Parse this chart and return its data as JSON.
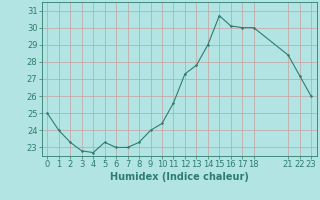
{
  "x": [
    0,
    1,
    2,
    3,
    4,
    5,
    6,
    7,
    8,
    9,
    10,
    11,
    12,
    13,
    14,
    15,
    16,
    17,
    18,
    21,
    22,
    23
  ],
  "y": [
    25.0,
    24.0,
    23.3,
    22.8,
    22.7,
    23.3,
    23.0,
    23.0,
    23.3,
    24.0,
    24.4,
    25.6,
    27.3,
    27.8,
    29.0,
    30.7,
    30.1,
    30.0,
    30.0,
    28.4,
    27.2,
    26.0
  ],
  "line_color": "#2e7d6e",
  "marker_color": "#2e7d6e",
  "bg_color": "#b2e4e4",
  "grid_color": "#c8a0a0",
  "xlabel": "Humidex (Indice chaleur)",
  "ylim": [
    22.5,
    31.5
  ],
  "xlim": [
    -0.5,
    23.5
  ],
  "yticks": [
    23,
    24,
    25,
    26,
    27,
    28,
    29,
    30,
    31
  ],
  "xtick_positions": [
    0,
    1,
    2,
    3,
    4,
    5,
    6,
    7,
    8,
    9,
    10,
    11,
    12,
    13,
    14,
    15,
    16,
    17,
    18,
    21,
    22,
    23
  ],
  "xtick_labels": [
    "0",
    "1",
    "2",
    "3",
    "4",
    "5",
    "6",
    "7",
    "8",
    "9",
    "10",
    "11",
    "12",
    "13",
    "14",
    "15",
    "16",
    "17",
    "18",
    "21",
    "22",
    "23"
  ],
  "axis_color": "#2e7d6e",
  "label_fontsize": 7,
  "tick_fontsize": 6,
  "linewidth": 0.8,
  "markersize": 2.5
}
